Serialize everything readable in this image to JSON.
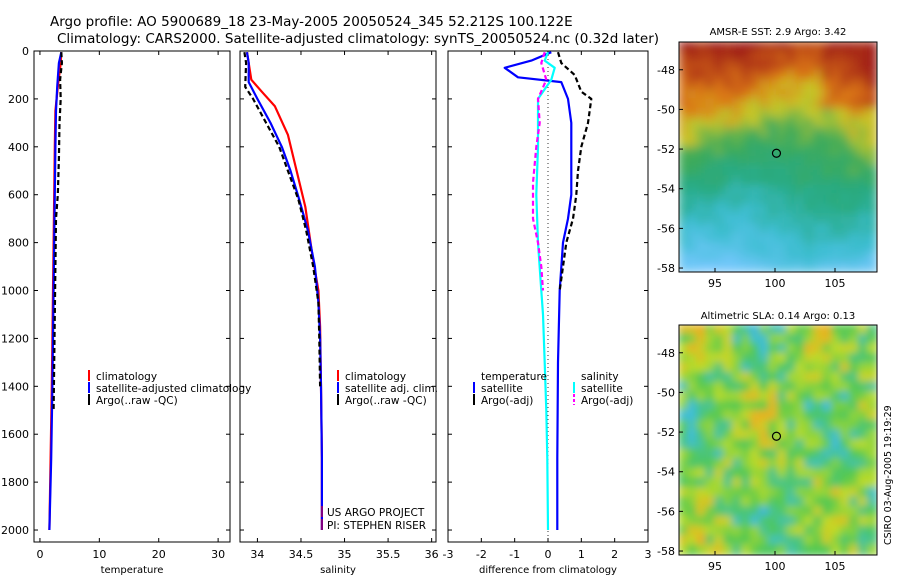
{
  "title_line1": "Argo profile: AO 5900689_18 23-May-2005 20050524_345 52.212S 100.122E",
  "title_line2": "Climatology: CARS2000. Satellite-adjusted climatology: synTS_20050524.nc (0.32d later)",
  "side_stamp": "CSIRO 03-Aug-2005 19:19:29",
  "project_line1": "US ARGO PROJECT",
  "project_line2": "PI: STEPHEN RISER",
  "colors": {
    "climatology": "#ff0000",
    "satellite": "#0000ff",
    "argo": "#000000",
    "sat_sal": "#00ffff",
    "argo_sal_adj": "#ff00ff"
  },
  "chart_data": [
    {
      "type": "line",
      "name": "temperature-profile",
      "xlabel": "temperature",
      "ylabel": "",
      "xlim": [
        -1,
        32
      ],
      "ylim": [
        2050,
        0
      ],
      "xticks": [
        0,
        10,
        20,
        30
      ],
      "yticks": [
        0,
        200,
        400,
        600,
        800,
        1000,
        1200,
        1400,
        1600,
        1800,
        2000
      ],
      "legend": [
        "climatology",
        "satellite-adjusted climatology",
        "Argo(..raw -QC)"
      ],
      "series": [
        {
          "name": "climatology",
          "color": "#ff0000",
          "dash": "",
          "x": [
            3.6,
            3.5,
            3.0,
            2.6,
            2.5,
            2.4,
            2.3,
            2.2,
            2.1,
            2.0,
            1.8,
            1.6
          ],
          "y": [
            5,
            50,
            150,
            250,
            400,
            600,
            800,
            1000,
            1200,
            1400,
            1700,
            2000
          ]
        },
        {
          "name": "satellite",
          "color": "#0000ff",
          "dash": "",
          "x": [
            3.6,
            3.2,
            2.9,
            2.7,
            2.6,
            2.5,
            2.4,
            2.3,
            2.2,
            2.1,
            1.9,
            1.6
          ],
          "y": [
            5,
            50,
            150,
            250,
            400,
            600,
            800,
            1000,
            1200,
            1400,
            1700,
            2000
          ]
        },
        {
          "name": "Argo",
          "color": "#000000",
          "dash": "5,3",
          "x": [
            3.6,
            3.7,
            3.4,
            3.5,
            3.3,
            3.2,
            3.0,
            2.7,
            2.6,
            2.5,
            2.4,
            2.3
          ],
          "y": [
            5,
            50,
            120,
            200,
            300,
            450,
            600,
            700,
            900,
            1100,
            1300,
            1500
          ]
        }
      ]
    },
    {
      "type": "line",
      "name": "salinity-profile",
      "xlabel": "salinity",
      "ylabel": "",
      "xlim": [
        33.8,
        36.05
      ],
      "ylim": [
        2050,
        0
      ],
      "xticks": [
        34,
        34.5,
        35,
        35.5,
        36
      ],
      "legend": [
        "climatology",
        "satellite adj. clim.",
        "Argo(..raw -QC)"
      ],
      "series": [
        {
          "name": "climatology",
          "color": "#ff0000",
          "dash": "",
          "x": [
            33.88,
            33.9,
            33.93,
            34.05,
            34.2,
            34.35,
            34.45,
            34.55,
            34.63,
            34.7,
            34.72,
            34.73,
            34.74,
            34.74
          ],
          "y": [
            5,
            50,
            120,
            170,
            230,
            350,
            500,
            650,
            850,
            1000,
            1150,
            1400,
            1700,
            2000
          ]
        },
        {
          "name": "satellite",
          "color": "#0000ff",
          "dash": "",
          "x": [
            33.88,
            33.9,
            33.9,
            34.0,
            34.15,
            34.28,
            34.38,
            34.48,
            34.58,
            34.66,
            34.7,
            34.72,
            34.73,
            34.74,
            34.74
          ],
          "y": [
            5,
            50,
            130,
            200,
            300,
            400,
            500,
            620,
            750,
            900,
            1050,
            1200,
            1400,
            1700,
            2000
          ]
        },
        {
          "name": "Argo",
          "color": "#000000",
          "dash": "5,3",
          "x": [
            33.85,
            33.87,
            33.86,
            33.95,
            34.1,
            34.25,
            34.35,
            34.47,
            34.56,
            34.64,
            34.7,
            34.71,
            34.72
          ],
          "y": [
            5,
            50,
            150,
            200,
            300,
            400,
            500,
            620,
            750,
            900,
            1050,
            1200,
            1400
          ]
        }
      ]
    },
    {
      "type": "line",
      "name": "difference-from-climatology",
      "xlabel": "difference from climatology",
      "ylabel": "",
      "xlim": [
        -3,
        3
      ],
      "ylim": [
        2050,
        0
      ],
      "xticks": [
        -3,
        -2,
        -1,
        0,
        1,
        2,
        3
      ],
      "legend_temperature": [
        "temperature",
        "satellite",
        "Argo(-adj)"
      ],
      "legend_salinity": [
        "salinity",
        "satellite",
        "Argo(-adj)"
      ],
      "series": [
        {
          "name": "temperature satellite",
          "color": "#0000ff",
          "dash": "",
          "x": [
            0.1,
            -0.5,
            -1.3,
            -0.9,
            0.4,
            0.6,
            0.7,
            0.7,
            0.7,
            0.7,
            0.6,
            0.45,
            0.35,
            0.3,
            0.28,
            0.28
          ],
          "y": [
            5,
            40,
            70,
            110,
            130,
            200,
            300,
            400,
            500,
            600,
            700,
            800,
            1000,
            1300,
            1700,
            2000
          ]
        },
        {
          "name": "temperature Argo",
          "color": "#000000",
          "dash": "5,3",
          "x": [
            0.3,
            0.4,
            0.8,
            1.0,
            1.3,
            1.2,
            1.0,
            0.9,
            0.85,
            0.8,
            0.75,
            0.55,
            0.45,
            0.35
          ],
          "y": [
            5,
            50,
            100,
            170,
            200,
            300,
            400,
            500,
            600,
            650,
            700,
            800,
            900,
            1000
          ]
        },
        {
          "name": "salinity satellite",
          "color": "#00ffff",
          "dash": "",
          "x": [
            0,
            -0.1,
            0.2,
            0.1,
            -0.3,
            -0.3,
            -0.35,
            -0.3,
            -0.2,
            -0.15,
            -0.1,
            -0.05,
            -0.02,
            0
          ],
          "y": [
            5,
            40,
            70,
            120,
            200,
            400,
            600,
            800,
            1000,
            1100,
            1300,
            1500,
            1700,
            2000
          ]
        },
        {
          "name": "salinity Argo",
          "color": "#ff00ff",
          "dash": "5,3",
          "x": [
            -0.1,
            -0.2,
            -0.05,
            -0.3,
            -0.25,
            -0.35,
            -0.45,
            -0.45,
            -0.3,
            -0.2,
            -0.15
          ],
          "y": [
            5,
            50,
            120,
            200,
            300,
            400,
            550,
            700,
            800,
            900,
            1000
          ]
        }
      ]
    },
    {
      "type": "heatmap",
      "name": "amsr-sst-map",
      "title": "AMSR-E SST: 2.9 Argo: 3.42",
      "xlim": [
        92,
        108.5
      ],
      "ylim": [
        -58.2,
        -46.6
      ],
      "xticks": [
        95,
        100,
        105
      ],
      "yticks": [
        -48,
        -50,
        -52,
        -54,
        -56,
        -58
      ],
      "float_position": [
        100.122,
        -52.212
      ]
    },
    {
      "type": "heatmap",
      "name": "altimetric-sla-map",
      "title": "Altimetric SLA: 0.14 Argo: 0.13",
      "xlim": [
        92,
        108.5
      ],
      "ylim": [
        -58.2,
        -46.6
      ],
      "xticks": [
        95,
        100,
        105
      ],
      "yticks": [
        -48,
        -50,
        -52,
        -54,
        -56,
        -58
      ],
      "float_position": [
        100.122,
        -52.212
      ]
    }
  ]
}
